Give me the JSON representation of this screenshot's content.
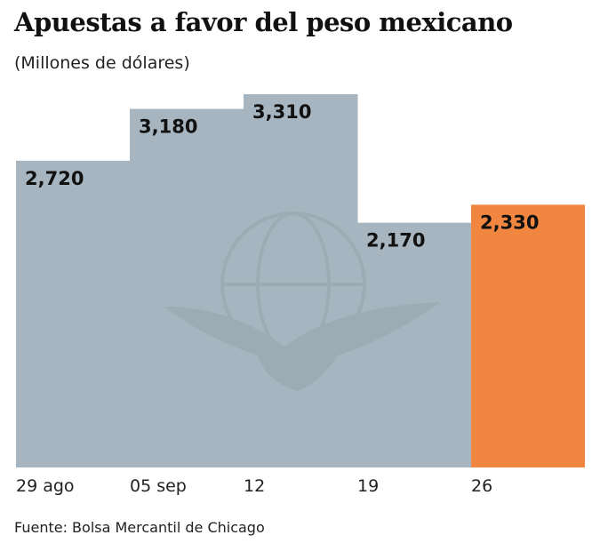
{
  "chart_data": {
    "type": "bar",
    "title": "Apuestas a favor del peso mexicano",
    "subtitle": "(Millones de dólares)",
    "categories": [
      "29 ago",
      "05 sep",
      "12",
      "19",
      "26"
    ],
    "values": [
      2720,
      3180,
      3310,
      2170,
      2330
    ],
    "value_labels": [
      "2,720",
      "3,180",
      "3,310",
      "2,170",
      "2,330"
    ],
    "ylim": [
      0,
      3310
    ],
    "grid": false,
    "colors": {
      "default": "#a6b5bf",
      "highlight": "#f18640",
      "label": "#111111"
    },
    "highlight_index": 4,
    "watermark": "eagle-globe-icon"
  },
  "source": "Fuente: Bolsa Mercantil de Chicago"
}
